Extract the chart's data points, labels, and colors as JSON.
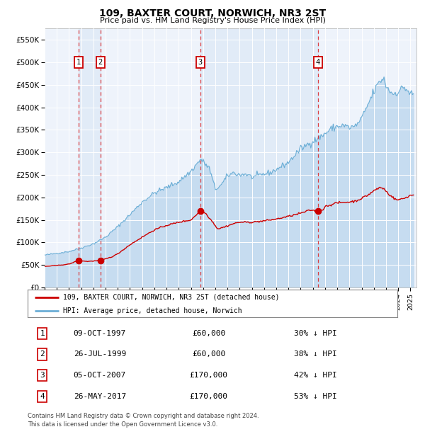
{
  "title": "109, BAXTER COURT, NORWICH, NR3 2ST",
  "subtitle": "Price paid vs. HM Land Registry's House Price Index (HPI)",
  "legend_line1": "109, BAXTER COURT, NORWICH, NR3 2ST (detached house)",
  "legend_line2": "HPI: Average price, detached house, Norwich",
  "footer1": "Contains HM Land Registry data © Crown copyright and database right 2024.",
  "footer2": "This data is licensed under the Open Government Licence v3.0.",
  "transactions": [
    {
      "num": 1,
      "date": "09-OCT-1997",
      "price": 60000,
      "pct": "30% ↓ HPI",
      "date_decimal": 1997.77
    },
    {
      "num": 2,
      "date": "26-JUL-1999",
      "price": 60000,
      "pct": "38% ↓ HPI",
      "date_decimal": 1999.57
    },
    {
      "num": 3,
      "date": "05-OCT-2007",
      "price": 170000,
      "pct": "42% ↓ HPI",
      "date_decimal": 2007.76
    },
    {
      "num": 4,
      "date": "26-MAY-2017",
      "price": 170000,
      "pct": "53% ↓ HPI",
      "date_decimal": 2017.4
    }
  ],
  "hpi_color": "#6baed6",
  "hpi_fill_color": "#c6dcf0",
  "price_color": "#cc0000",
  "marker_color": "#cc0000",
  "dashed_color": "#dd2222",
  "ylim": [
    0,
    575000
  ],
  "yticks": [
    0,
    50000,
    100000,
    150000,
    200000,
    250000,
    300000,
    350000,
    400000,
    450000,
    500000,
    550000
  ],
  "xlim_start": 1995.0,
  "xlim_end": 2025.5,
  "background_color": "#ffffff",
  "plot_bg_color": "#eef3fb"
}
